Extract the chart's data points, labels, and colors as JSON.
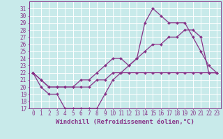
{
  "background_color": "#c8eaea",
  "grid_color": "#ffffff",
  "line_color": "#883388",
  "markersize": 2.0,
  "linewidth": 0.9,
  "xlabel": "Windchill (Refroidissement éolien,°C)",
  "xlabel_fontsize": 6.5,
  "tick_fontsize": 5.5,
  "ylim": [
    17,
    32
  ],
  "xlim": [
    -0.5,
    23.5
  ],
  "yticks": [
    17,
    18,
    19,
    20,
    21,
    22,
    23,
    24,
    25,
    26,
    27,
    28,
    29,
    30,
    31
  ],
  "xticks": [
    0,
    1,
    2,
    3,
    4,
    5,
    6,
    7,
    8,
    9,
    10,
    11,
    12,
    13,
    14,
    15,
    16,
    17,
    18,
    19,
    20,
    21,
    22,
    23
  ],
  "series": [
    [
      22,
      20,
      19,
      19,
      17,
      17,
      17,
      17,
      17,
      19,
      21,
      22,
      22,
      22,
      22,
      22,
      22,
      22,
      22,
      22,
      22,
      22,
      22,
      22
    ],
    [
      22,
      21,
      20,
      20,
      20,
      20,
      20,
      20,
      21,
      21,
      22,
      22,
      23,
      24,
      25,
      26,
      26,
      27,
      27,
      28,
      28,
      27,
      22,
      22
    ],
    [
      22,
      21,
      20,
      20,
      20,
      20,
      21,
      21,
      22,
      23,
      24,
      24,
      23,
      24,
      29,
      31,
      30,
      29,
      29,
      29,
      27,
      25,
      23,
      22
    ]
  ]
}
